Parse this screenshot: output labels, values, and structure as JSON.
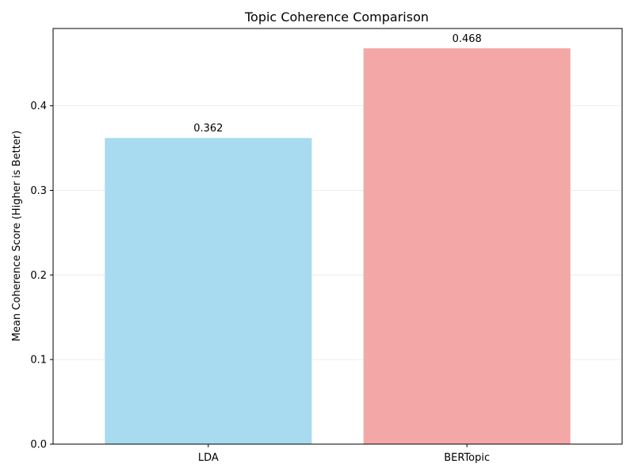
{
  "chart_data": {
    "type": "bar",
    "title": "Topic Coherence Comparison",
    "xlabel": "",
    "ylabel": "Mean Coherence Score (Higher is Better)",
    "categories": [
      "LDA",
      "BERTopic"
    ],
    "values": [
      0.362,
      0.468
    ],
    "data_labels": [
      "0.362",
      "0.468"
    ],
    "colors": [
      "#a8dbef",
      "#f4a7a7"
    ],
    "ylim": [
      0,
      0.4914
    ],
    "yticks": [
      0.0,
      0.1,
      0.2,
      0.3,
      0.4
    ],
    "ytick_labels": [
      "0.0",
      "0.1",
      "0.2",
      "0.3",
      "0.4"
    ],
    "grid": "y",
    "legend": "none"
  }
}
